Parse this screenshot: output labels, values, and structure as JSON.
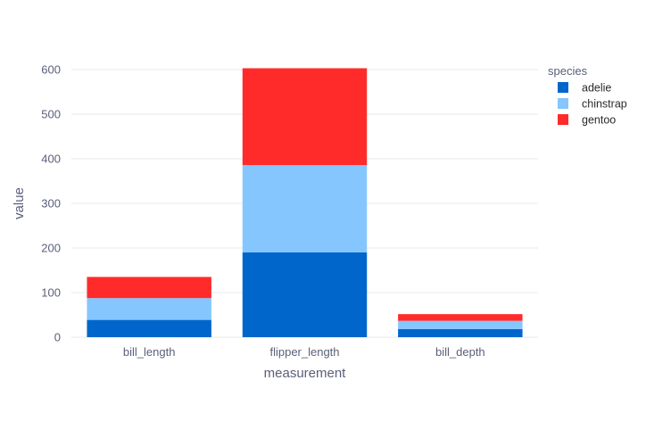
{
  "chart_data": {
    "type": "bar",
    "stacked": true,
    "categories": [
      "bill_length",
      "flipper_length",
      "bill_depth"
    ],
    "series": [
      {
        "name": "adelie",
        "color": "#0066cc",
        "values": [
          38.8,
          190.0,
          18.3
        ]
      },
      {
        "name": "chinstrap",
        "color": "#85c6ff",
        "values": [
          48.8,
          195.8,
          18.4
        ]
      },
      {
        "name": "gentoo",
        "color": "#ff2b2b",
        "values": [
          47.5,
          217.2,
          15.0
        ]
      }
    ],
    "xlabel": "measurement",
    "ylabel": "value",
    "ylim": [
      0,
      600
    ],
    "yticks": [
      0,
      100,
      200,
      300,
      400,
      500,
      600
    ],
    "grid": true,
    "legend": {
      "title": "species",
      "placement": "top-right"
    },
    "colors": {
      "text": "#5a5f7a",
      "grid": "#e8e8ee",
      "background": "#ffffff"
    }
  }
}
